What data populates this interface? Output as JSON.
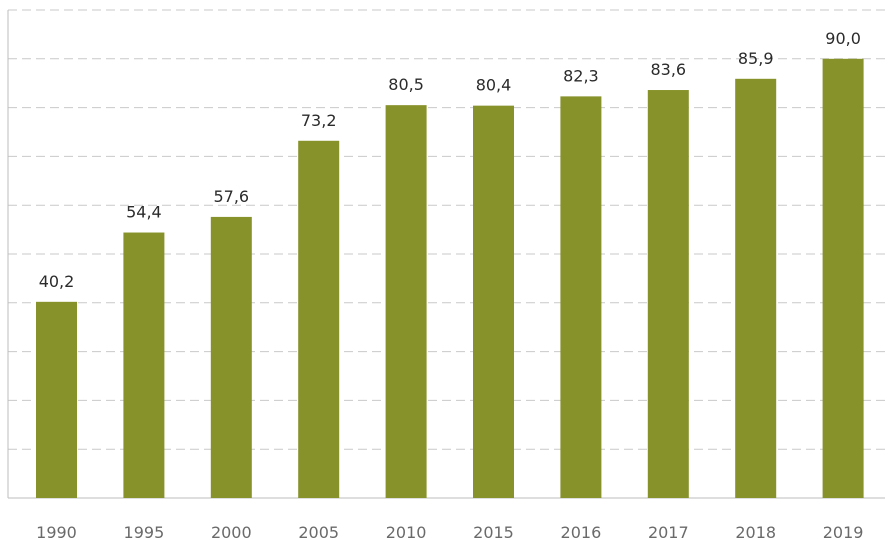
{
  "chart_data": {
    "type": "bar",
    "title": "",
    "xlabel": "",
    "ylabel": "",
    "categories": [
      "1990",
      "1995",
      "2000",
      "2005",
      "2010",
      "2015",
      "2016",
      "2017",
      "2018",
      "2019"
    ],
    "values": [
      40.2,
      54.4,
      57.6,
      73.2,
      80.5,
      80.4,
      82.3,
      83.6,
      85.9,
      90.0
    ],
    "value_labels": [
      "40,2",
      "54,4",
      "57,6",
      "73,2",
      "80,5",
      "80,4",
      "82,3",
      "83,6",
      "85,9",
      "90,0"
    ],
    "ylim": [
      0,
      100
    ],
    "y_grid_step": 10,
    "grid": true,
    "grid_style": "dashed",
    "legend": "none",
    "bar_color": "#87922a"
  }
}
